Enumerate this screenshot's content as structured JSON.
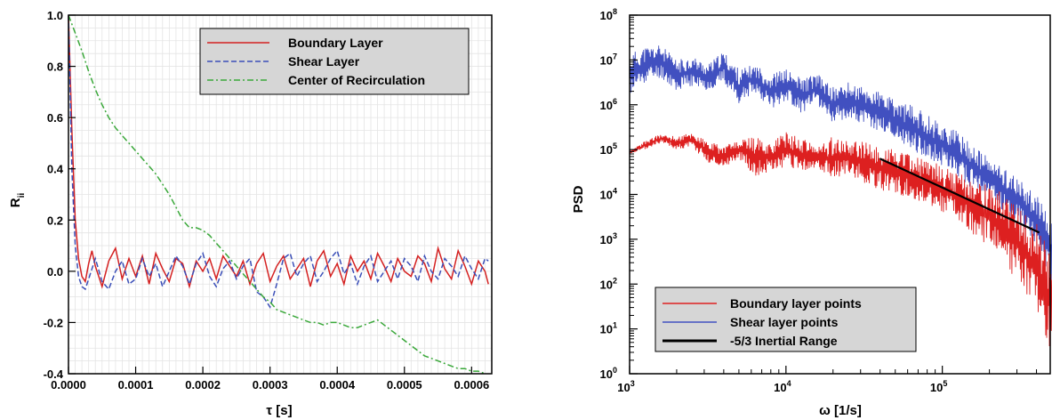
{
  "chart_data": [
    {
      "type": "line",
      "xlabel": "τ [s]",
      "ylabel_main": "R",
      "ylabel_sub": "ii",
      "xlim": [
        0,
        0.00063
      ],
      "ylim": [
        -0.4,
        1.0
      ],
      "grid": true,
      "legend_position": "top-right",
      "x_ticks": [
        "0.0000",
        "0.0001",
        "0.0002",
        "0.0003",
        "0.0004",
        "0.0005",
        "0.0006"
      ],
      "y_ticks": [
        "-0.4",
        "-0.2",
        "0.0",
        "0.2",
        "0.4",
        "0.6",
        "0.8",
        "1.0"
      ],
      "series": [
        {
          "name": "Boundary Layer",
          "color": "#d42020",
          "dash": "solid",
          "x": [
            0,
            5e-06,
            1e-05,
            1.5e-05,
            2e-05,
            2.5e-05,
            3e-05,
            3.5e-05,
            4e-05,
            5e-05,
            6e-05,
            7e-05,
            8e-05,
            9e-05,
            0.0001,
            0.00011,
            0.00012,
            0.00013,
            0.00014,
            0.00015,
            0.00016,
            0.00017,
            0.00018,
            0.00019,
            0.0002,
            0.00021,
            0.00022,
            0.00023,
            0.00024,
            0.00025,
            0.00026,
            0.00027,
            0.00028,
            0.00029,
            0.0003,
            0.00031,
            0.00032,
            0.00033,
            0.00034,
            0.00035,
            0.00036,
            0.00037,
            0.00038,
            0.00039,
            0.0004,
            0.00041,
            0.00042,
            0.00043,
            0.00044,
            0.00045,
            0.00046,
            0.00047,
            0.00048,
            0.00049,
            0.0005,
            0.00051,
            0.00052,
            0.00053,
            0.00054,
            0.00055,
            0.00056,
            0.00057,
            0.00058,
            0.00059,
            0.0006,
            0.00061,
            0.00062,
            0.000625
          ],
          "y": [
            1.0,
            0.55,
            0.2,
            0.05,
            -0.02,
            -0.04,
            0.03,
            0.08,
            0.02,
            -0.06,
            0.04,
            0.09,
            -0.03,
            0.05,
            -0.02,
            0.06,
            -0.05,
            0.07,
            0.01,
            -0.04,
            0.05,
            0.03,
            -0.06,
            0.04,
            0.0,
            0.05,
            -0.03,
            0.06,
            0.02,
            -0.02,
            0.04,
            -0.05,
            0.03,
            0.07,
            -0.04,
            0.02,
            0.06,
            -0.03,
            0.01,
            0.05,
            -0.06,
            0.04,
            0.08,
            -0.02,
            0.03,
            -0.05,
            0.06,
            0.0,
            0.04,
            -0.03,
            0.07,
            0.02,
            -0.04,
            0.05,
            0.0,
            -0.02,
            0.06,
            0.03,
            -0.04,
            0.09,
            0.01,
            -0.03,
            0.08,
            0.02,
            -0.05,
            0.04,
            0.0,
            -0.05
          ]
        },
        {
          "name": "Shear Layer",
          "color": "#3b4fb8",
          "dash": "dashed",
          "x": [
            0,
            5e-06,
            1e-05,
            1.5e-05,
            2e-05,
            2.5e-05,
            3e-05,
            4e-05,
            5e-05,
            6e-05,
            7e-05,
            8e-05,
            9e-05,
            0.0001,
            0.00011,
            0.00012,
            0.00013,
            0.00014,
            0.00015,
            0.00016,
            0.00017,
            0.00018,
            0.00019,
            0.0002,
            0.00021,
            0.00022,
            0.00023,
            0.00024,
            0.00025,
            0.00026,
            0.00027,
            0.00028,
            0.00029,
            0.0003,
            0.00031,
            0.00032,
            0.00033,
            0.00034,
            0.00035,
            0.00036,
            0.00037,
            0.00038,
            0.00039,
            0.0004,
            0.00041,
            0.00042,
            0.00043,
            0.00044,
            0.00045,
            0.00046,
            0.00047,
            0.00048,
            0.00049,
            0.0005,
            0.00051,
            0.00052,
            0.00053,
            0.00054,
            0.00055,
            0.00056,
            0.00057,
            0.00058,
            0.00059,
            0.0006,
            0.00061,
            0.00062,
            0.000625
          ],
          "y": [
            1.0,
            0.4,
            0.1,
            -0.02,
            -0.06,
            -0.07,
            -0.03,
            0.05,
            -0.04,
            -0.07,
            0.0,
            0.04,
            -0.05,
            -0.03,
            0.05,
            -0.02,
            0.03,
            -0.06,
            0.0,
            0.06,
            0.02,
            -0.05,
            0.03,
            0.07,
            -0.02,
            -0.06,
            0.01,
            0.04,
            -0.03,
            0.02,
            0.05,
            -0.08,
            -0.1,
            -0.14,
            -0.05,
            0.05,
            0.07,
            -0.02,
            0.03,
            0.06,
            -0.04,
            0.0,
            0.05,
            0.08,
            -0.01,
            0.03,
            -0.05,
            0.02,
            0.06,
            -0.04,
            0.0,
            0.04,
            -0.03,
            0.05,
            0.02,
            -0.04,
            0.06,
            0.0,
            -0.03,
            0.05,
            0.02,
            -0.02,
            0.06,
            0.01,
            -0.03,
            0.05,
            0.04
          ]
        },
        {
          "name": "Center of Recirculation",
          "color": "#3aa83a",
          "dash": "dashdot",
          "x": [
            0,
            1e-05,
            2e-05,
            3e-05,
            4e-05,
            5e-05,
            6e-05,
            7e-05,
            8e-05,
            9e-05,
            0.0001,
            0.00011,
            0.00012,
            0.00013,
            0.00014,
            0.00015,
            0.00016,
            0.00017,
            0.00018,
            0.00019,
            0.0002,
            0.00021,
            0.00022,
            0.00023,
            0.00024,
            0.00025,
            0.00026,
            0.00027,
            0.00028,
            0.00029,
            0.0003,
            0.00031,
            0.00032,
            0.00033,
            0.00034,
            0.00035,
            0.00036,
            0.00037,
            0.00038,
            0.00039,
            0.0004,
            0.00041,
            0.00042,
            0.00043,
            0.00044,
            0.00045,
            0.00046,
            0.00047,
            0.00048,
            0.00049,
            0.0005,
            0.00051,
            0.00052,
            0.00053,
            0.00054,
            0.00055,
            0.00056,
            0.00057,
            0.00058,
            0.00059,
            0.0006,
            0.00061,
            0.00062
          ],
          "y": [
            1.0,
            0.93,
            0.86,
            0.78,
            0.71,
            0.65,
            0.6,
            0.56,
            0.53,
            0.5,
            0.47,
            0.44,
            0.41,
            0.38,
            0.34,
            0.3,
            0.25,
            0.2,
            0.17,
            0.17,
            0.16,
            0.14,
            0.11,
            0.08,
            0.05,
            0.02,
            -0.01,
            -0.04,
            -0.07,
            -0.1,
            -0.12,
            -0.15,
            -0.16,
            -0.17,
            -0.18,
            -0.19,
            -0.2,
            -0.2,
            -0.21,
            -0.2,
            -0.2,
            -0.21,
            -0.22,
            -0.22,
            -0.21,
            -0.2,
            -0.19,
            -0.21,
            -0.23,
            -0.25,
            -0.27,
            -0.29,
            -0.31,
            -0.33,
            -0.34,
            -0.35,
            -0.36,
            -0.37,
            -0.38,
            -0.38,
            -0.39,
            -0.39,
            -0.4
          ]
        }
      ]
    },
    {
      "type": "line",
      "xlabel": "ω [1/s]",
      "ylabel": "PSD",
      "x_scale": "log",
      "y_scale": "log",
      "xlim_exp": [
        3,
        5.71
      ],
      "ylim_exp": [
        0,
        8
      ],
      "grid": false,
      "legend_position": "bottom-left",
      "x_ticks": [
        {
          "base": "10",
          "exp": "3"
        },
        {
          "base": "10",
          "exp": "4"
        },
        {
          "base": "10",
          "exp": "5"
        }
      ],
      "y_ticks": [
        {
          "base": "10",
          "exp": "0"
        },
        {
          "base": "10",
          "exp": "1"
        },
        {
          "base": "10",
          "exp": "2"
        },
        {
          "base": "10",
          "exp": "3"
        },
        {
          "base": "10",
          "exp": "4"
        },
        {
          "base": "10",
          "exp": "5"
        },
        {
          "base": "10",
          "exp": "6"
        },
        {
          "base": "10",
          "exp": "7"
        },
        {
          "base": "10",
          "exp": "8"
        }
      ],
      "series": [
        {
          "name": "Boundary layer points",
          "color": "#dd2020",
          "dash": "solid",
          "log_x": [
            3.0,
            3.1,
            3.2,
            3.3,
            3.4,
            3.5,
            3.6,
            3.7,
            3.8,
            3.9,
            4.0,
            4.1,
            4.2,
            4.3,
            4.4,
            4.5,
            4.6,
            4.7,
            4.8,
            4.9,
            5.0,
            5.1,
            5.2,
            5.3,
            5.4,
            5.5,
            5.6,
            5.65,
            5.7
          ],
          "log_y_upper": [
            4.95,
            5.2,
            5.35,
            5.3,
            5.4,
            5.2,
            5.1,
            5.2,
            5.3,
            5.2,
            5.4,
            5.25,
            5.1,
            5.3,
            5.2,
            5.2,
            5.1,
            5.0,
            4.9,
            4.8,
            4.65,
            4.5,
            4.4,
            4.2,
            4.0,
            3.7,
            3.4,
            3.0,
            2.6
          ],
          "log_y_lower": [
            4.9,
            5.0,
            5.15,
            5.0,
            5.05,
            4.7,
            4.6,
            4.8,
            4.4,
            4.5,
            4.6,
            4.5,
            4.55,
            4.3,
            4.5,
            4.2,
            4.1,
            4.0,
            3.9,
            3.8,
            3.6,
            3.4,
            3.1,
            2.8,
            2.4,
            2.0,
            1.3,
            0.8,
            0.4
          ]
        },
        {
          "name": "Shear layer points",
          "color": "#4150c0",
          "dash": "solid",
          "log_x": [
            3.0,
            3.1,
            3.2,
            3.3,
            3.4,
            3.5,
            3.6,
            3.7,
            3.8,
            3.9,
            4.0,
            4.1,
            4.2,
            4.3,
            4.4,
            4.5,
            4.6,
            4.7,
            4.8,
            4.9,
            5.0,
            5.1,
            5.2,
            5.3,
            5.4,
            5.5,
            5.6,
            5.65,
            5.7
          ],
          "log_y_upper": [
            7.15,
            7.3,
            7.35,
            7.0,
            7.1,
            6.9,
            7.2,
            6.8,
            6.9,
            6.7,
            6.8,
            6.6,
            6.7,
            6.4,
            6.5,
            6.4,
            6.3,
            6.1,
            6.0,
            5.8,
            5.6,
            5.4,
            5.1,
            4.8,
            4.6,
            4.3,
            4.0,
            3.7,
            3.4
          ],
          "log_y_lower": [
            6.2,
            6.5,
            6.6,
            6.3,
            6.4,
            6.3,
            6.5,
            6.0,
            6.3,
            5.9,
            6.1,
            5.8,
            6.0,
            5.6,
            5.7,
            5.5,
            5.4,
            5.2,
            5.0,
            4.8,
            4.6,
            4.4,
            4.1,
            3.9,
            3.6,
            3.3,
            2.9,
            2.5,
            2.0
          ]
        },
        {
          "name": "-5/3 Inertial Range",
          "color": "#000000",
          "dash": "solid",
          "log_x": [
            4.6,
            5.62
          ],
          "log_y": [
            4.8,
            3.15
          ]
        }
      ]
    }
  ]
}
